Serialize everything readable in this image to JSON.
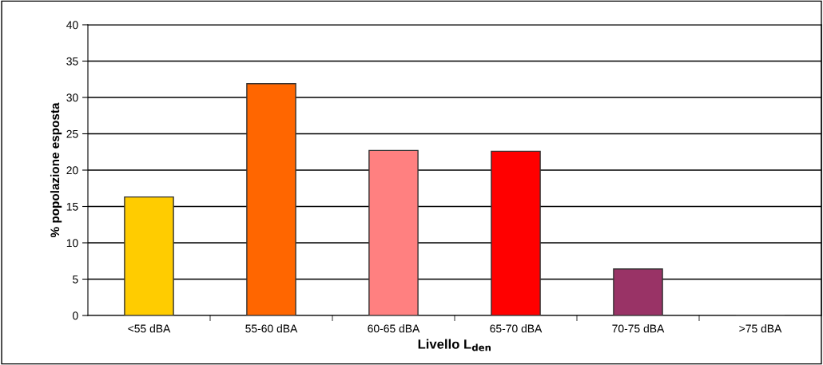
{
  "chart_data": {
    "type": "bar",
    "categories": [
      "<55 dBA",
      "55-60 dBA",
      "60-65 dBA",
      "65-70 dBA",
      "70-75 dBA",
      ">75 dBA"
    ],
    "values": [
      16.3,
      31.9,
      22.7,
      22.6,
      6.4,
      0
    ],
    "colors": [
      "#ffcc00",
      "#ff6600",
      "#ff8080",
      "#ff0000",
      "#993366",
      "#333333"
    ],
    "xlabel": "Livello L$_{den}$",
    "ylabel": "% popolazione esposta",
    "ylim": [
      0,
      40
    ],
    "yticks": [
      0,
      5,
      10,
      15,
      20,
      25,
      30,
      35,
      40
    ],
    "grid": "y",
    "legend": false
  }
}
